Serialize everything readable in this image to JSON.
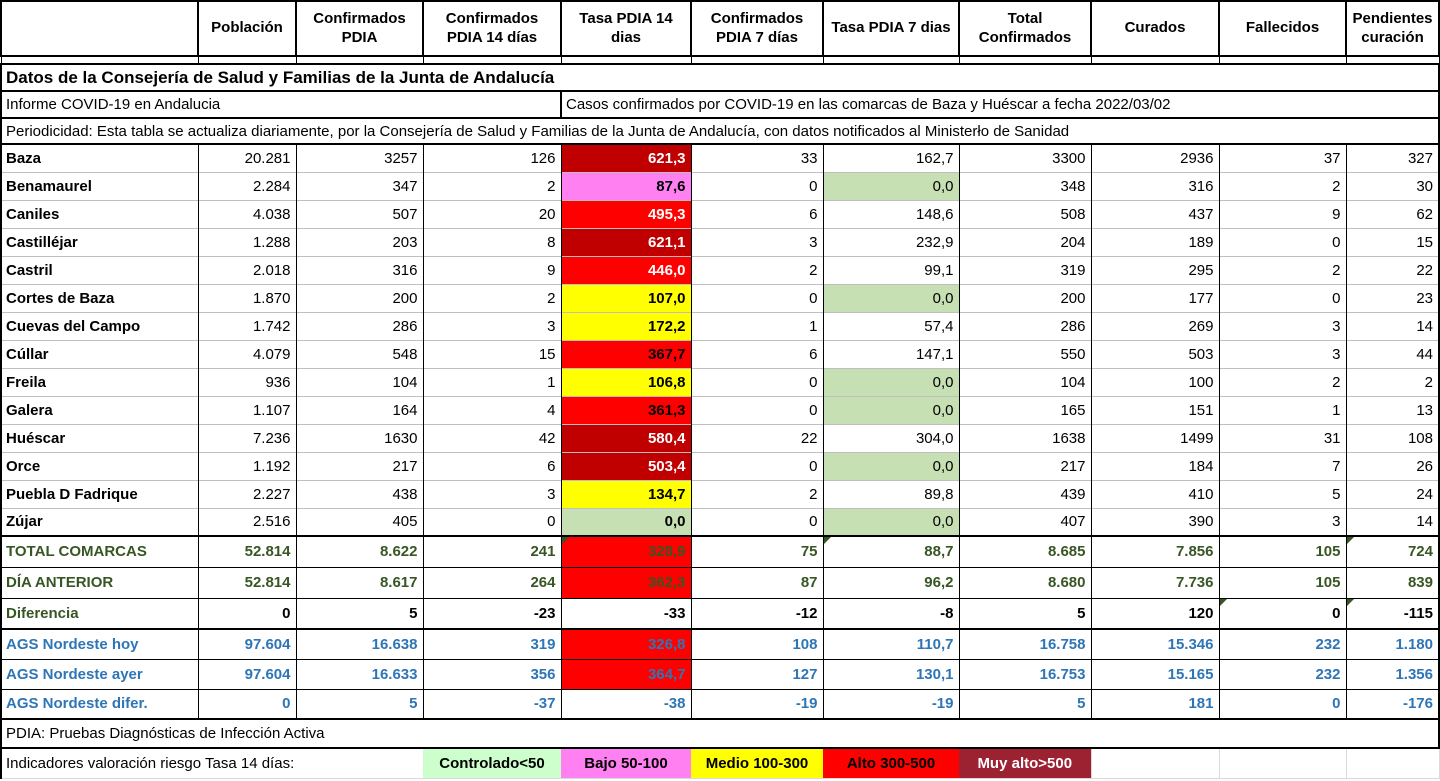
{
  "sheet": {
    "title": "Datos de la Consejería de Salud y Familias de la Junta de Andalucía",
    "subtitle_left": "Informe COVID-19 en Andalucia",
    "subtitle_right": "Casos confirmados por COVID-19 en las comarcas de Baza y Huéscar a fecha 2022/03/02",
    "periodicity": "Periodicidad: Esta tabla se actualiza diariamente, por la Consejería de Salud y Familias de la Junta de Andalucía, con datos notificados al Ministerło de Sanidad",
    "pdia_note": "PDIA: Pruebas Diagnósticas de Infección Activa"
  },
  "table": {
    "columns": [
      "",
      "Población",
      "Confirmados PDIA",
      "Confirmados PDIA 14 días",
      "Tasa PDIA 14 dias",
      "Confirmados PDIA 7 días",
      "Tasa PDIA 7 dias",
      "Total Confirmados",
      "Curados",
      "Fallecidos",
      "Pendientes curación"
    ],
    "municipios": [
      {
        "name": "Baza",
        "poblacion": "20.281",
        "conf_pdia": "3257",
        "conf14": "126",
        "tasa14": "621,3",
        "t14": "darkred-white",
        "conf7": "33",
        "tasa7": "162,7",
        "t7": "",
        "total": "3300",
        "curados": "2936",
        "fallecidos": "37",
        "pendientes": "327"
      },
      {
        "name": "Benamaurel",
        "poblacion": "2.284",
        "conf_pdia": "347",
        "conf14": "2",
        "tasa14": "87,6",
        "t14": "pink",
        "conf7": "0",
        "tasa7": "0,0",
        "t7": "green",
        "total": "348",
        "curados": "316",
        "fallecidos": "2",
        "pendientes": "30"
      },
      {
        "name": "Caniles",
        "poblacion": "4.038",
        "conf_pdia": "507",
        "conf14": "20",
        "tasa14": "495,3",
        "t14": "red-white",
        "conf7": "6",
        "tasa7": "148,6",
        "t7": "",
        "total": "508",
        "curados": "437",
        "fallecidos": "9",
        "pendientes": "62"
      },
      {
        "name": "Castilléjar",
        "poblacion": "1.288",
        "conf_pdia": "203",
        "conf14": "8",
        "tasa14": "621,1",
        "t14": "darkred-white",
        "conf7": "3",
        "tasa7": "232,9",
        "t7": "",
        "total": "204",
        "curados": "189",
        "fallecidos": "0",
        "pendientes": "15"
      },
      {
        "name": "Castril",
        "poblacion": "2.018",
        "conf_pdia": "316",
        "conf14": "9",
        "tasa14": "446,0",
        "t14": "red-white",
        "conf7": "2",
        "tasa7": "99,1",
        "t7": "",
        "total": "319",
        "curados": "295",
        "fallecidos": "2",
        "pendientes": "22"
      },
      {
        "name": "Cortes de Baza",
        "poblacion": "1.870",
        "conf_pdia": "200",
        "conf14": "2",
        "tasa14": "107,0",
        "t14": "yellow",
        "conf7": "0",
        "tasa7": "0,0",
        "t7": "green",
        "total": "200",
        "curados": "177",
        "fallecidos": "0",
        "pendientes": "23"
      },
      {
        "name": "Cuevas del Campo",
        "poblacion": "1.742",
        "conf_pdia": "286",
        "conf14": "3",
        "tasa14": "172,2",
        "t14": "yellow",
        "conf7": "1",
        "tasa7": "57,4",
        "t7": "",
        "total": "286",
        "curados": "269",
        "fallecidos": "3",
        "pendientes": "14"
      },
      {
        "name": "Cúllar",
        "poblacion": "4.079",
        "conf_pdia": "548",
        "conf14": "15",
        "tasa14": "367,7",
        "t14": "red-black",
        "conf7": "6",
        "tasa7": "147,1",
        "t7": "",
        "total": "550",
        "curados": "503",
        "fallecidos": "3",
        "pendientes": "44"
      },
      {
        "name": "Freila",
        "poblacion": "936",
        "conf_pdia": "104",
        "conf14": "1",
        "tasa14": "106,8",
        "t14": "yellow",
        "conf7": "0",
        "tasa7": "0,0",
        "t7": "green",
        "total": "104",
        "curados": "100",
        "fallecidos": "2",
        "pendientes": "2"
      },
      {
        "name": "Galera",
        "poblacion": "1.107",
        "conf_pdia": "164",
        "conf14": "4",
        "tasa14": "361,3",
        "t14": "red-black",
        "conf7": "0",
        "tasa7": "0,0",
        "t7": "green",
        "total": "165",
        "curados": "151",
        "fallecidos": "1",
        "pendientes": "13"
      },
      {
        "name": "Huéscar",
        "poblacion": "7.236",
        "conf_pdia": "1630",
        "conf14": "42",
        "tasa14": "580,4",
        "t14": "darkred-white",
        "conf7": "22",
        "tasa7": "304,0",
        "t7": "",
        "total": "1638",
        "curados": "1499",
        "fallecidos": "31",
        "pendientes": "108"
      },
      {
        "name": "Orce",
        "poblacion": "1.192",
        "conf_pdia": "217",
        "conf14": "6",
        "tasa14": "503,4",
        "t14": "darkred-white",
        "conf7": "0",
        "tasa7": "0,0",
        "t7": "green",
        "total": "217",
        "curados": "184",
        "fallecidos": "7",
        "pendientes": "26"
      },
      {
        "name": "Puebla D Fadrique",
        "poblacion": "2.227",
        "conf_pdia": "438",
        "conf14": "3",
        "tasa14": "134,7",
        "t14": "yellow",
        "conf7": "2",
        "tasa7": "89,8",
        "t7": "",
        "total": "439",
        "curados": "410",
        "fallecidos": "5",
        "pendientes": "24"
      },
      {
        "name": "Zújar",
        "poblacion": "2.516",
        "conf_pdia": "405",
        "conf14": "0",
        "tasa14": "0,0",
        "t14": "green",
        "conf7": "0",
        "tasa7": "0,0",
        "t7": "green",
        "total": "407",
        "curados": "390",
        "fallecidos": "3",
        "pendientes": "14"
      }
    ],
    "resumen": [
      {
        "name": "TOTAL COMARCAS",
        "style": "green",
        "poblacion": "52.814",
        "conf_pdia": "8.622",
        "conf14": "241",
        "tasa14": "328,9",
        "t14": "red-green",
        "conf7": "75",
        "tasa7": "88,7",
        "t7": "",
        "total": "8.685",
        "curados": "7.856",
        "fallecidos": "105",
        "pendientes": "724",
        "tri": [
          "tasa14",
          "tasa7",
          "pendientes"
        ]
      },
      {
        "name": "DÍA ANTERIOR",
        "style": "green",
        "poblacion": "52.814",
        "conf_pdia": "8.617",
        "conf14": "264",
        "tasa14": "362,3",
        "t14": "red-green",
        "conf7": "87",
        "tasa7": "96,2",
        "t7": "",
        "total": "8.680",
        "curados": "7.736",
        "fallecidos": "105",
        "pendientes": "839",
        "tri": []
      },
      {
        "name": "Diferencia",
        "style": "green-label",
        "poblacion": "0",
        "conf_pdia": "5",
        "conf14": "-23",
        "tasa14": "-33",
        "t14": "",
        "conf7": "-12",
        "tasa7": "-8",
        "t7": "",
        "total": "5",
        "curados": "120",
        "fallecidos": "0",
        "pendientes": "-115",
        "tri": [
          "fallecidos",
          "pendientes"
        ]
      }
    ],
    "ags": [
      {
        "name": "AGS Nordeste hoy",
        "poblacion": "97.604",
        "conf_pdia": "16.638",
        "conf14": "319",
        "tasa14": "326,8",
        "t14": "red-blue",
        "conf7": "108",
        "tasa7": "110,7",
        "t7": "",
        "total": "16.758",
        "curados": "15.346",
        "fallecidos": "232",
        "pendientes": "1.180"
      },
      {
        "name": "AGS Nordeste ayer",
        "poblacion": "97.604",
        "conf_pdia": "16.633",
        "conf14": "356",
        "tasa14": "364,7",
        "t14": "red-blue",
        "conf7": "127",
        "tasa7": "130,1",
        "t7": "",
        "total": "16.753",
        "curados": "15.165",
        "fallecidos": "232",
        "pendientes": "1.356"
      },
      {
        "name": "AGS Nordeste difer.",
        "poblacion": "0",
        "conf_pdia": "5",
        "conf14": "-37",
        "tasa14": "-38",
        "t14": "",
        "conf7": "-19",
        "tasa7": "-19",
        "t7": "",
        "total": "5",
        "curados": "181",
        "fallecidos": "0",
        "pendientes": "-176"
      }
    ]
  },
  "legend": {
    "label": "Indicadores valoración riesgo Tasa 14 días:",
    "items": [
      {
        "text": "Controlado<50",
        "bg": "#CCFFCC",
        "fg": "#000000"
      },
      {
        "text": "Bajo 50-100",
        "bg": "#FF80F0",
        "fg": "#000000"
      },
      {
        "text": "Medio 100-300",
        "bg": "#FFFF00",
        "fg": "#000000"
      },
      {
        "text": "Alto 300-500",
        "bg": "#FF0000",
        "fg": "#000000"
      },
      {
        "text": "Muy alto>500",
        "bg": "#9C2232",
        "fg": "#FFFFFF"
      }
    ]
  },
  "colors": {
    "muy_alto_cell": "#C00000",
    "alto_cell": "#FF0000",
    "medio_cell": "#FFFF00",
    "bajo_cell": "#FF80F0",
    "controlado_cell": "#C6E0B4",
    "summary_text": "#375623",
    "ags_text": "#2E75B6",
    "formula_triangle": "#375623"
  }
}
